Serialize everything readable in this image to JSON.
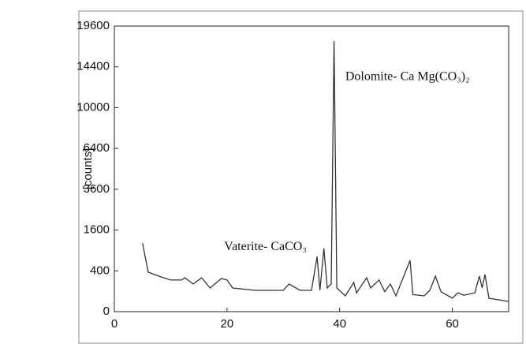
{
  "chart_data": {
    "type": "line",
    "y_label": "[counts]",
    "yscale": "sqrt",
    "xlim": [
      0,
      70
    ],
    "xticks": [
      0,
      20,
      40,
      60
    ],
    "ylim": [
      0,
      19600
    ],
    "yticks": [
      0,
      400,
      1600,
      3600,
      6400,
      10000,
      14400,
      19600
    ],
    "color": "#333333",
    "annotations": [
      {
        "text": "Dolomite- Ca Mg(CO₃)₂",
        "x": 41,
        "y": 13200
      },
      {
        "text": "Vaterite- CaCO₃",
        "x": 19.5,
        "y": 1000
      }
    ],
    "x": [
      5,
      6,
      8,
      10,
      12,
      12.5,
      14,
      15.5,
      17,
      19,
      20,
      21,
      25,
      30,
      31,
      33,
      35,
      36,
      36.5,
      37.2,
      37.8,
      38.5,
      39,
      39.5,
      41,
      42.5,
      43,
      44.8,
      45.5,
      47,
      48,
      49,
      50,
      52.5,
      53,
      55,
      56,
      57,
      58,
      60,
      61,
      62,
      64,
      64.8,
      65.3,
      65.8,
      66.5,
      70
    ],
    "values": [
      1130,
      375,
      300,
      240,
      240,
      276,
      183,
      276,
      135,
      264,
      240,
      135,
      109,
      109,
      183,
      109,
      109,
      730,
      109,
      960,
      135,
      183,
      17600,
      135,
      60,
      205,
      85,
      276,
      135,
      240,
      95,
      183,
      60,
      632,
      70,
      60,
      109,
      303,
      95,
      43,
      85,
      65,
      85,
      303,
      135,
      332,
      43,
      25
    ]
  }
}
